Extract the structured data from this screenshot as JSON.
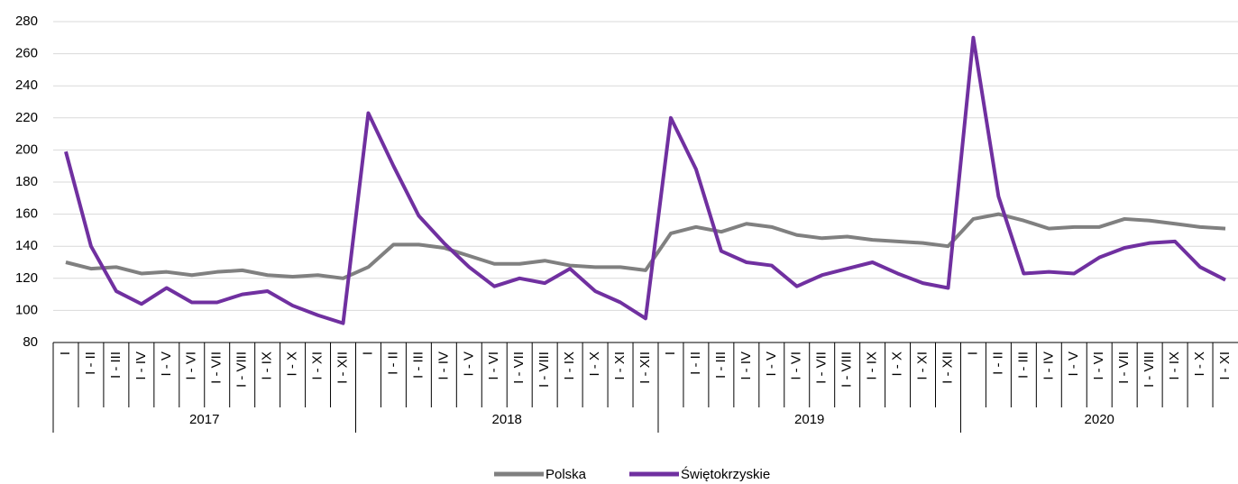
{
  "chart_data": {
    "type": "line",
    "category_groups": [
      {
        "name": "2017",
        "categories": [
          "I",
          "I - II",
          "I - III",
          "I - IV",
          "I - V",
          "I - VI",
          "I - VII",
          "I - VIII",
          "I - IX",
          "I - X",
          "I - XI",
          "I - XII"
        ]
      },
      {
        "name": "2018",
        "categories": [
          "I",
          "I - II",
          "I - III",
          "I - IV",
          "I - V",
          "I - VI",
          "I - VII",
          "I - VIII",
          "I - IX",
          "I - X",
          "I - XI",
          "I - XII"
        ]
      },
      {
        "name": "2019",
        "categories": [
          "I",
          "I - II",
          "I - III",
          "I - IV",
          "I - V",
          "I - VI",
          "I - VII",
          "I - VIII",
          "I - IX",
          "I - X",
          "I - XI",
          "I - XII"
        ]
      },
      {
        "name": "2020",
        "categories": [
          "I",
          "I - II",
          "I - III",
          "I - IV",
          "I - V",
          "I - VI",
          "I - VII",
          "I - VIII",
          "I - IX",
          "I - X",
          "I - XI"
        ]
      }
    ],
    "series": [
      {
        "name": "Polska",
        "color": "#808080",
        "values": [
          130,
          126,
          127,
          123,
          124,
          122,
          124,
          125,
          122,
          121,
          122,
          120,
          127,
          141,
          141,
          139,
          134,
          129,
          129,
          131,
          128,
          127,
          127,
          125,
          148,
          152,
          149,
          154,
          152,
          147,
          145,
          146,
          144,
          143,
          142,
          140,
          157,
          160,
          156,
          151,
          152,
          152,
          157,
          156,
          154,
          152,
          151
        ]
      },
      {
        "name": "Świętokrzyskie",
        "color": "#7030a0",
        "values": [
          199,
          140,
          112,
          104,
          114,
          105,
          105,
          110,
          112,
          103,
          97,
          92,
          223,
          190,
          159,
          142,
          127,
          115,
          120,
          117,
          126,
          112,
          105,
          95,
          220,
          188,
          137,
          130,
          128,
          115,
          122,
          126,
          130,
          123,
          117,
          114,
          270,
          171,
          123,
          124,
          123,
          133,
          139,
          142,
          143,
          127,
          119
        ]
      }
    ],
    "ylim": [
      80,
      280
    ],
    "yticks": [
      80,
      100,
      120,
      140,
      160,
      180,
      200,
      220,
      240,
      260,
      280
    ],
    "grid": true,
    "legend": "bottom"
  }
}
